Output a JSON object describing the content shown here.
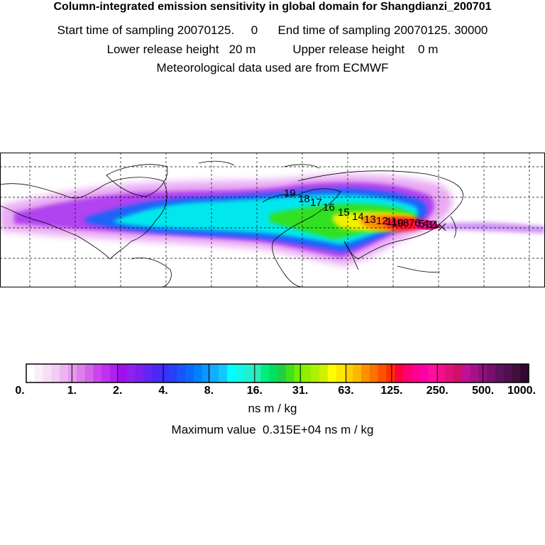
{
  "header": {
    "title": "Column-integrated emission sensitivity in global domain for Shangdianzi_200701",
    "line_sampling": "Start time of sampling 20070125.     0      End time of sampling 20070125. 30000",
    "line_release": "Lower release height   20 m           Upper release height    0 m",
    "line_met": "Meteorological data used are from ECMWF"
  },
  "map": {
    "domain": "global",
    "grid": "dashed lat/lon graticule",
    "station": "Shangdianzi",
    "trajectory_day_labels": [
      "19",
      "18",
      "17",
      "16",
      "15",
      "14",
      "13",
      "12",
      "11",
      "10",
      "9",
      "8",
      "7",
      "6",
      "5",
      "4",
      "3",
      "2",
      "1"
    ]
  },
  "colorbar": {
    "tick_labels": [
      "0.",
      "1.",
      "2.",
      "4.",
      "8.",
      "16.",
      "31.",
      "63.",
      "125.",
      "250.",
      "500.",
      "1000."
    ],
    "unit": "ns m / kg",
    "colors": [
      "#ffffff",
      "#fbeefb",
      "#f7ddf7",
      "#f3ccf3",
      "#edb3f3",
      "#e59aee",
      "#dd7fe9",
      "#d466e6",
      "#cc44ee",
      "#c030ee",
      "#b020ee",
      "#a010ee",
      "#9020f0",
      "#7a20f0",
      "#6424f2",
      "#4e28f4",
      "#3a30f6",
      "#2840f8",
      "#1a54fa",
      "#0c68fc",
      "#0080ff",
      "#0a98ff",
      "#10b0ff",
      "#14c8ff",
      "#00ffff",
      "#10f8e8",
      "#20f0d0",
      "#30e8b8",
      "#00ee80",
      "#00e060",
      "#20d040",
      "#40e020",
      "#70f000",
      "#90f000",
      "#b0f000",
      "#d0f000",
      "#ffff00",
      "#ffe800",
      "#ffd000",
      "#ffb800",
      "#ff9000",
      "#ff7000",
      "#ff5000",
      "#ff3000",
      "#ff0040",
      "#ff0070",
      "#ff0090",
      "#ff00a8",
      "#ff10a0",
      "#f0108a",
      "#e01078",
      "#d01068",
      "#c01098",
      "#a8108a",
      "#901080",
      "#781070",
      "#601060",
      "#50104f",
      "#40103f",
      "#300830"
    ]
  },
  "maximum_value_text": "Maximum value  0.315E+04 ns m / kg"
}
